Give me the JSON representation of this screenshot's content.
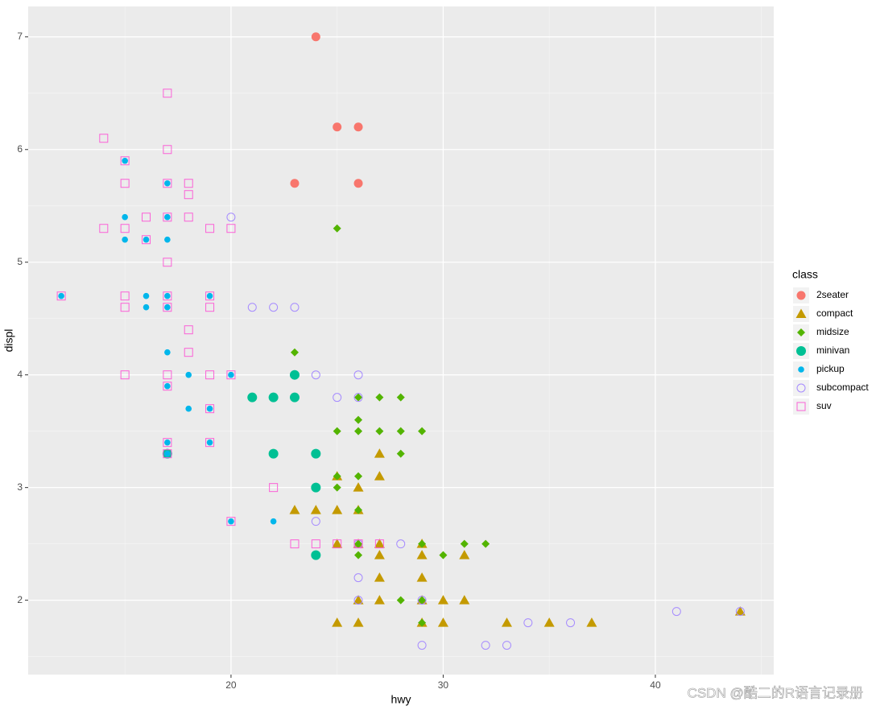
{
  "chart_data": {
    "type": "scatter",
    "x_label": "hwy",
    "y_label": "displ",
    "legend_title": "class",
    "xlim": [
      10.44,
      45.58
    ],
    "ylim": [
      1.34,
      7.27
    ],
    "xticks": [
      20,
      30,
      40
    ],
    "yticks": [
      2,
      3,
      4,
      5,
      6,
      7
    ],
    "grid": true,
    "legend_position": "right",
    "watermark": "CSDN @酷二的R语言记录册",
    "series": [
      {
        "name": "2seater",
        "color": "#F8766D",
        "shape": "circle",
        "x": [
          24,
          25,
          26,
          23,
          26
        ],
        "values": [
          7.0,
          6.2,
          6.2,
          5.7,
          5.7
        ]
      },
      {
        "name": "compact",
        "color": "#C49A00",
        "shape": "triangle",
        "x": [
          25,
          26,
          27,
          27,
          23,
          24,
          25,
          26,
          25,
          26,
          27,
          29,
          27,
          29,
          31,
          27,
          29,
          26,
          27,
          29,
          30,
          31,
          25,
          26,
          29,
          30,
          33,
          35,
          37,
          44
        ],
        "values": [
          3.1,
          3.0,
          3.3,
          3.1,
          2.8,
          2.8,
          2.8,
          2.8,
          2.5,
          2.5,
          2.5,
          2.5,
          2.4,
          2.4,
          2.4,
          2.2,
          2.2,
          2.0,
          2.0,
          2.0,
          2.0,
          2.0,
          1.8,
          1.8,
          1.8,
          1.8,
          1.8,
          1.8,
          1.8,
          1.9
        ]
      },
      {
        "name": "midsize",
        "color": "#53B400",
        "shape": "diamond",
        "x": [
          25,
          23,
          26,
          27,
          28,
          26,
          25,
          26,
          27,
          28,
          29,
          28,
          25,
          26,
          25,
          26,
          26,
          29,
          31,
          32,
          26,
          30,
          28,
          29,
          29
        ],
        "values": [
          5.3,
          4.2,
          3.8,
          3.8,
          3.8,
          3.6,
          3.5,
          3.5,
          3.5,
          3.5,
          3.5,
          3.3,
          3.1,
          3.1,
          3.0,
          2.8,
          2.5,
          2.5,
          2.5,
          2.5,
          2.4,
          2.4,
          2.0,
          2.0,
          1.8
        ]
      },
      {
        "name": "minivan",
        "color": "#00C094",
        "shape": "big-circle",
        "x": [
          23,
          21,
          22,
          23,
          22,
          24,
          17,
          24,
          24
        ],
        "values": [
          4.0,
          3.8,
          3.8,
          3.8,
          3.3,
          3.3,
          3.3,
          3.0,
          2.4
        ]
      },
      {
        "name": "pickup",
        "color": "#00B6EB",
        "shape": "small-circle",
        "x": [
          15,
          17,
          15,
          17,
          15,
          16,
          17,
          12,
          16,
          17,
          19,
          16,
          17,
          17,
          18,
          20,
          17,
          18,
          19,
          17,
          19,
          17,
          20,
          22
        ],
        "values": [
          5.9,
          5.7,
          5.4,
          5.4,
          5.2,
          5.2,
          5.2,
          4.7,
          4.7,
          4.7,
          4.7,
          4.6,
          4.6,
          4.2,
          4.0,
          4.0,
          3.9,
          3.7,
          3.7,
          3.4,
          3.4,
          3.3,
          2.7,
          2.7
        ]
      },
      {
        "name": "subcompact",
        "color": "#A58AFF",
        "shape": "open-circle",
        "x": [
          20,
          21,
          22,
          23,
          24,
          26,
          25,
          26,
          24,
          28,
          26,
          26,
          26,
          29,
          34,
          36,
          41,
          44,
          29,
          32,
          33
        ],
        "values": [
          5.4,
          4.6,
          4.6,
          4.6,
          4.0,
          4.0,
          3.8,
          3.8,
          2.7,
          2.5,
          2.5,
          2.2,
          2.0,
          2.0,
          1.8,
          1.8,
          1.9,
          1.9,
          1.6,
          1.6,
          1.6
        ]
      },
      {
        "name": "suv",
        "color": "#FB61D7",
        "shape": "open-square",
        "x": [
          17,
          14,
          17,
          15,
          15,
          17,
          18,
          18,
          16,
          17,
          18,
          14,
          15,
          19,
          20,
          16,
          17,
          12,
          15,
          17,
          19,
          15,
          17,
          19,
          18,
          18,
          15,
          17,
          19,
          20,
          17,
          19,
          17,
          19,
          17,
          22,
          20,
          23,
          24,
          25,
          26,
          27
        ],
        "values": [
          6.5,
          6.1,
          6.0,
          5.9,
          5.7,
          5.7,
          5.7,
          5.6,
          5.4,
          5.4,
          5.4,
          5.3,
          5.3,
          5.3,
          5.3,
          5.2,
          5.0,
          4.7,
          4.7,
          4.7,
          4.7,
          4.6,
          4.6,
          4.6,
          4.4,
          4.2,
          4.0,
          4.0,
          4.0,
          4.0,
          3.9,
          3.7,
          3.4,
          3.4,
          3.3,
          3.0,
          2.7,
          2.5,
          2.5,
          2.5,
          2.5,
          2.5
        ]
      }
    ]
  }
}
